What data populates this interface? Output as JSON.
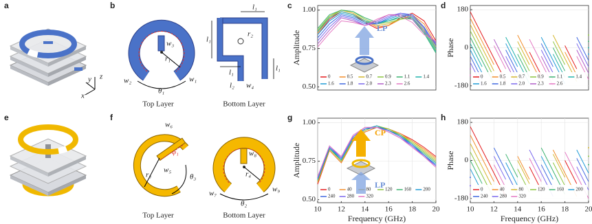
{
  "figure": {
    "panel_letters": [
      "a",
      "b",
      "c",
      "d",
      "e",
      "f",
      "g",
      "h"
    ],
    "axes_3d": [
      "z",
      "y",
      "x"
    ],
    "panel_b": {
      "top_layer": "Top Layer",
      "bottom_layer": "Bottom Layer",
      "top_labels": [
        "w₃",
        "r₁",
        "w₂",
        "w₁",
        "θ₁"
      ],
      "bottom_labels": [
        "l₁",
        "l₁",
        "r₂",
        "l₁",
        "l₁",
        "l₂",
        "w₄"
      ]
    },
    "panel_f": {
      "top_layer": "Top Layer",
      "bottom_layer": "Bottom Layer",
      "top_labels": [
        "w₆",
        "φ₁",
        "r₃",
        "w₅",
        "θ₃"
      ],
      "bottom_labels": [
        "w₈",
        "r₄",
        "w₇",
        "w₉",
        "θ₂"
      ]
    }
  },
  "chart_data": [
    {
      "type": "line",
      "ylabel": "Amplitude",
      "annotation": "LP",
      "x": [
        10,
        11,
        12,
        13,
        14,
        15,
        16,
        17,
        18,
        19,
        20
      ],
      "xlim": [
        10,
        20
      ],
      "ylim": [
        0.48,
        1.03
      ],
      "yticks": [
        {
          "value": 0.5,
          "label": "0.50"
        },
        {
          "value": 0.75,
          "label": "0.75"
        },
        {
          "value": 1,
          "label": "1.00"
        }
      ],
      "grid": true,
      "legend": "bottom",
      "series": [
        {
          "name": "0",
          "color": "#e41a1c",
          "values": [
            0.84,
            0.94,
            0.99,
            0.97,
            0.92,
            0.88,
            0.9,
            0.95,
            0.98,
            0.93,
            0.8
          ]
        },
        {
          "name": "0.5",
          "color": "#f28e2b",
          "values": [
            0.85,
            0.95,
            1.0,
            0.98,
            0.93,
            0.89,
            0.9,
            0.94,
            0.97,
            0.91,
            0.78
          ]
        },
        {
          "name": "0.7",
          "color": "#d4b62c",
          "values": [
            0.86,
            0.96,
            1.0,
            0.98,
            0.93,
            0.9,
            0.91,
            0.94,
            0.96,
            0.89,
            0.76
          ]
        },
        {
          "name": "0.9",
          "color": "#8cc63f",
          "values": [
            0.87,
            0.96,
            1.0,
            0.99,
            0.94,
            0.91,
            0.92,
            0.94,
            0.95,
            0.87,
            0.74
          ]
        },
        {
          "name": "1.1",
          "color": "#3cb371",
          "values": [
            0.88,
            0.97,
            1.0,
            0.99,
            0.95,
            0.92,
            0.93,
            0.95,
            0.94,
            0.85,
            0.72
          ]
        },
        {
          "name": "1.4",
          "color": "#20b2aa",
          "values": [
            0.86,
            0.95,
            0.99,
            0.97,
            0.93,
            0.91,
            0.93,
            0.96,
            0.95,
            0.86,
            0.73
          ]
        },
        {
          "name": "1.6",
          "color": "#1f9bd6",
          "values": [
            0.84,
            0.93,
            0.98,
            0.96,
            0.92,
            0.91,
            0.94,
            0.97,
            0.96,
            0.88,
            0.75
          ]
        },
        {
          "name": "1.8",
          "color": "#4169e1",
          "values": [
            0.82,
            0.91,
            0.97,
            0.95,
            0.91,
            0.91,
            0.95,
            0.98,
            0.97,
            0.89,
            0.77
          ]
        },
        {
          "name": "2.0",
          "color": "#7b68ee",
          "values": [
            0.8,
            0.89,
            0.96,
            0.94,
            0.9,
            0.92,
            0.96,
            0.98,
            0.96,
            0.88,
            0.78
          ]
        },
        {
          "name": "2.3",
          "color": "#b05cc7",
          "values": [
            0.78,
            0.87,
            0.95,
            0.93,
            0.9,
            0.93,
            0.97,
            0.97,
            0.94,
            0.86,
            0.79
          ]
        },
        {
          "name": "2.6",
          "color": "#e377c2",
          "values": [
            0.76,
            0.85,
            0.93,
            0.92,
            0.9,
            0.94,
            0.97,
            0.96,
            0.92,
            0.84,
            0.8
          ]
        }
      ]
    },
    {
      "type": "line",
      "ylabel": "Phase",
      "x": [
        10,
        11,
        12,
        13,
        14,
        15,
        16,
        17,
        18,
        19,
        20
      ],
      "xlim": [
        10,
        20
      ],
      "ylim": [
        -200,
        200
      ],
      "yticks": [
        -180,
        0,
        180
      ],
      "grid": true,
      "legend": "bottom",
      "series": [
        {
          "name": "0",
          "color": "#e41a1c",
          "values": [
            170,
            60,
            -50,
            -160,
            null,
            -20,
            -130,
            null,
            10,
            -100,
            null
          ]
        },
        {
          "name": "0.5",
          "color": "#f28e2b",
          "values": [
            140,
            30,
            -80,
            null,
            60,
            -50,
            -160,
            null,
            -20,
            -130,
            null
          ]
        },
        {
          "name": "0.7",
          "color": "#d4b62c",
          "values": [
            110,
            0,
            -110,
            null,
            30,
            -80,
            null,
            60,
            -50,
            -160,
            null
          ]
        },
        {
          "name": "0.9",
          "color": "#8cc63f",
          "values": [
            80,
            -30,
            -140,
            null,
            0,
            -110,
            null,
            30,
            -80,
            null,
            60
          ]
        },
        {
          "name": "1.1",
          "color": "#3cb371",
          "values": [
            50,
            -60,
            -170,
            null,
            -30,
            -140,
            null,
            0,
            -110,
            null,
            30
          ]
        },
        {
          "name": "1.4",
          "color": "#20b2aa",
          "values": [
            20,
            -90,
            null,
            50,
            -60,
            -170,
            null,
            -30,
            -140,
            null,
            0
          ]
        },
        {
          "name": "1.6",
          "color": "#1f9bd6",
          "values": [
            -10,
            -120,
            null,
            20,
            -90,
            null,
            50,
            -60,
            -170,
            null,
            -30
          ]
        },
        {
          "name": "1.8",
          "color": "#4169e1",
          "values": [
            -40,
            -150,
            null,
            -10,
            -120,
            null,
            20,
            -90,
            null,
            50,
            -60
          ]
        },
        {
          "name": "2.0",
          "color": "#7b68ee",
          "values": [
            -70,
            -180,
            null,
            -40,
            -150,
            null,
            -10,
            -120,
            null,
            20,
            -90
          ]
        },
        {
          "name": "2.3",
          "color": "#b05cc7",
          "values": [
            -100,
            null,
            40,
            -70,
            -180,
            null,
            -40,
            -150,
            null,
            -10,
            -120
          ]
        },
        {
          "name": "2.6",
          "color": "#e377c2",
          "values": [
            -130,
            null,
            10,
            -100,
            null,
            40,
            -70,
            -180,
            null,
            -40,
            -150
          ]
        }
      ]
    },
    {
      "type": "line",
      "ylabel": "Amplitude",
      "xlabel": "Frequency (GHz)",
      "annotation": "CP",
      "annotation2": "LP",
      "x": [
        10,
        11,
        12,
        13,
        14,
        15,
        16,
        17,
        18,
        19,
        20
      ],
      "xlim": [
        10,
        20
      ],
      "ylim": [
        0.48,
        1.03
      ],
      "xticks": [
        10,
        12,
        14,
        16,
        18,
        20
      ],
      "yticks": [
        {
          "value": 0.5,
          "label": "0.50"
        },
        {
          "value": 0.75,
          "label": "0.75"
        },
        {
          "value": 1,
          "label": "1.00"
        }
      ],
      "grid": true,
      "legend": "bottom",
      "series": [
        {
          "name": "0",
          "color": "#e41a1c",
          "values": [
            0.6,
            0.82,
            0.74,
            0.88,
            0.94,
            0.97,
            0.96,
            0.93,
            0.89,
            0.84,
            0.78
          ]
        },
        {
          "name": "40",
          "color": "#f28e2b",
          "values": [
            0.61,
            0.82,
            0.74,
            0.88,
            0.94,
            0.97,
            0.96,
            0.93,
            0.88,
            0.83,
            0.77
          ]
        },
        {
          "name": "80",
          "color": "#d4b62c",
          "values": [
            0.62,
            0.83,
            0.75,
            0.89,
            0.95,
            0.98,
            0.96,
            0.92,
            0.88,
            0.82,
            0.76
          ]
        },
        {
          "name": "120",
          "color": "#8cc63f",
          "values": [
            0.62,
            0.83,
            0.75,
            0.89,
            0.95,
            0.98,
            0.96,
            0.92,
            0.87,
            0.81,
            0.75
          ]
        },
        {
          "name": "160",
          "color": "#3cb371",
          "values": [
            0.63,
            0.83,
            0.76,
            0.9,
            0.96,
            0.98,
            0.95,
            0.92,
            0.86,
            0.8,
            0.74
          ]
        },
        {
          "name": "200",
          "color": "#1f9bd6",
          "values": [
            0.63,
            0.84,
            0.76,
            0.9,
            0.96,
            0.98,
            0.95,
            0.91,
            0.86,
            0.79,
            0.73
          ]
        },
        {
          "name": "240",
          "color": "#4169e1",
          "values": [
            0.64,
            0.84,
            0.77,
            0.91,
            0.96,
            0.97,
            0.95,
            0.91,
            0.85,
            0.79,
            0.72
          ]
        },
        {
          "name": "280",
          "color": "#7b68ee",
          "values": [
            0.64,
            0.85,
            0.77,
            0.91,
            0.97,
            0.97,
            0.94,
            0.9,
            0.85,
            0.78,
            0.72
          ]
        },
        {
          "name": "320",
          "color": "#e377c2",
          "values": [
            0.65,
            0.85,
            0.78,
            0.92,
            0.97,
            0.97,
            0.94,
            0.9,
            0.84,
            0.78,
            0.71
          ]
        }
      ]
    },
    {
      "type": "line",
      "ylabel": "Phase",
      "xlabel": "Frequency (GHz)",
      "x": [
        10,
        11,
        12,
        13,
        14,
        15,
        16,
        17,
        18,
        19,
        20
      ],
      "xlim": [
        10,
        20
      ],
      "ylim": [
        -200,
        200
      ],
      "xticks": [
        10,
        12,
        14,
        16,
        18,
        20
      ],
      "yticks": [
        -180,
        0,
        180
      ],
      "grid": true,
      "legend": "bottom",
      "series": [
        {
          "name": "0",
          "color": "#e41a1c",
          "values": [
            160,
            50,
            -60,
            -170,
            null,
            -30,
            -140,
            null,
            0,
            -110,
            null
          ]
        },
        {
          "name": "40",
          "color": "#f28e2b",
          "values": [
            120,
            10,
            -100,
            null,
            20,
            -90,
            null,
            50,
            -60,
            -170,
            null
          ]
        },
        {
          "name": "80",
          "color": "#d4b62c",
          "values": [
            80,
            -30,
            -140,
            null,
            0,
            -110,
            null,
            30,
            -80,
            null,
            60
          ]
        },
        {
          "name": "120",
          "color": "#8cc63f",
          "values": [
            40,
            -70,
            -180,
            null,
            -40,
            -150,
            null,
            -10,
            -120,
            null,
            20
          ]
        },
        {
          "name": "160",
          "color": "#3cb371",
          "values": [
            0,
            -110,
            null,
            30,
            -80,
            null,
            60,
            -50,
            -160,
            null,
            -20
          ]
        },
        {
          "name": "200",
          "color": "#1f9bd6",
          "values": [
            -40,
            -150,
            null,
            -10,
            -120,
            null,
            20,
            -90,
            null,
            50,
            -60
          ]
        },
        {
          "name": "240",
          "color": "#4169e1",
          "values": [
            -80,
            null,
            60,
            -50,
            -160,
            null,
            -20,
            -130,
            null,
            10,
            -100
          ]
        },
        {
          "name": "280",
          "color": "#7b68ee",
          "values": [
            -120,
            null,
            20,
            -90,
            null,
            50,
            -60,
            -170,
            null,
            -30,
            -140
          ]
        },
        {
          "name": "320",
          "color": "#e377c2",
          "values": [
            -160,
            null,
            -20,
            -130,
            null,
            10,
            -100,
            null,
            40,
            -70,
            -180
          ]
        }
      ]
    }
  ]
}
